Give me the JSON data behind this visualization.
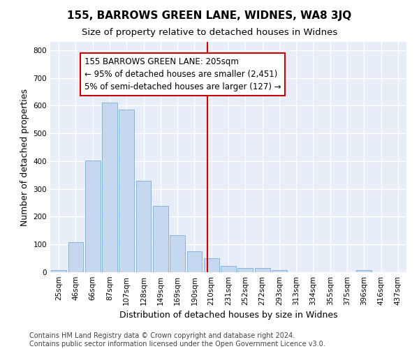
{
  "title": "155, BARROWS GREEN LANE, WIDNES, WA8 3JQ",
  "subtitle": "Size of property relative to detached houses in Widnes",
  "xlabel": "Distribution of detached houses by size in Widnes",
  "ylabel": "Number of detached properties",
  "bar_labels": [
    "25sqm",
    "46sqm",
    "66sqm",
    "87sqm",
    "107sqm",
    "128sqm",
    "149sqm",
    "169sqm",
    "190sqm",
    "210sqm",
    "231sqm",
    "252sqm",
    "272sqm",
    "293sqm",
    "313sqm",
    "334sqm",
    "355sqm",
    "375sqm",
    "396sqm",
    "416sqm",
    "437sqm"
  ],
  "bar_values": [
    8,
    107,
    403,
    610,
    586,
    330,
    240,
    133,
    75,
    50,
    22,
    15,
    15,
    8,
    0,
    0,
    0,
    0,
    8,
    0,
    0
  ],
  "bar_color": "#c5d8f0",
  "bar_edgecolor": "#7aadd4",
  "vline_color": "#cc0000",
  "annotation_text": "155 BARROWS GREEN LANE: 205sqm\n← 95% of detached houses are smaller (2,451)\n5% of semi-detached houses are larger (127) →",
  "annotation_box_color": "#ffffff",
  "annotation_box_edgecolor": "#cc0000",
  "ylim": [
    0,
    830
  ],
  "yticks": [
    0,
    100,
    200,
    300,
    400,
    500,
    600,
    700,
    800
  ],
  "footer": "Contains HM Land Registry data © Crown copyright and database right 2024.\nContains public sector information licensed under the Open Government Licence v3.0.",
  "bg_color": "#ffffff",
  "plot_bg_color": "#e8eef8",
  "grid_color": "#ffffff",
  "title_fontsize": 11,
  "subtitle_fontsize": 9.5,
  "tick_fontsize": 7.5,
  "ylabel_fontsize": 9,
  "xlabel_fontsize": 9,
  "footer_fontsize": 7,
  "annotation_fontsize": 8.5
}
